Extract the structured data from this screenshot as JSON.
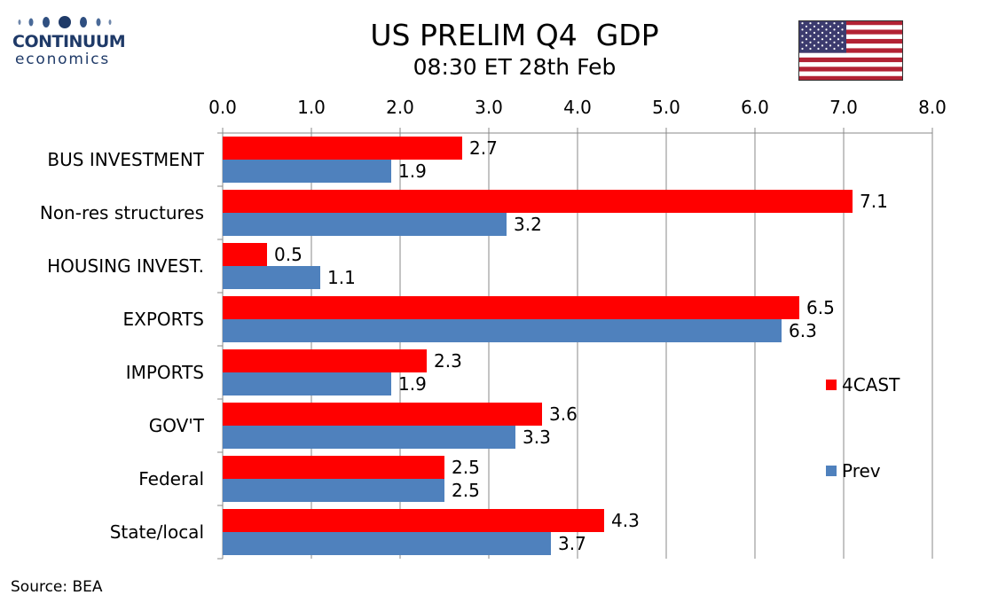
{
  "brand": {
    "name": "CONTINUUM",
    "tagline": "economics",
    "color": "#1f3a68",
    "icon": "logo-dots-icon"
  },
  "flag": {
    "icon": "us-flag-icon"
  },
  "footer": {
    "source": "Source: BEA"
  },
  "chart_data": {
    "type": "bar",
    "orientation": "horizontal",
    "title": "US PRELIM Q4  GDP",
    "subtitle": "08:30 ET 28th Feb",
    "categories": [
      "BUS INVESTMENT",
      "Non-res structures",
      "HOUSING INVEST.",
      "EXPORTS",
      "IMPORTS",
      "GOV'T",
      "Federal",
      "State/local"
    ],
    "series": [
      {
        "name": "4CAST",
        "color": "#ff0000",
        "values": [
          2.7,
          7.1,
          0.5,
          6.5,
          2.3,
          3.6,
          2.5,
          4.3
        ]
      },
      {
        "name": "Prev",
        "color": "#4f81bd",
        "values": [
          1.9,
          3.2,
          1.1,
          6.3,
          1.9,
          3.3,
          2.5,
          3.7
        ]
      }
    ],
    "xlim": [
      0,
      8
    ],
    "xticks": [
      "0.0",
      "1.0",
      "2.0",
      "3.0",
      "4.0",
      "5.0",
      "6.0",
      "7.0",
      "8.0"
    ],
    "x_axis_position": "top",
    "grid": true,
    "data_labels": true,
    "legend_position": "right"
  }
}
